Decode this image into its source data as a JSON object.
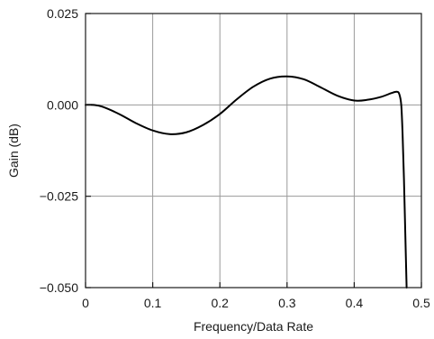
{
  "chart_data": {
    "type": "line",
    "title": "",
    "xlabel": "Frequency/Data Rate",
    "ylabel": "Gain (dB)",
    "xlim": [
      0,
      0.5
    ],
    "ylim": [
      -0.05,
      0.025
    ],
    "grid": true,
    "legend": "none",
    "x_ticks": [
      "0",
      "0.1",
      "0.2",
      "0.3",
      "0.4",
      "0.5"
    ],
    "x_tick_values": [
      0,
      0.1,
      0.2,
      0.3,
      0.4,
      0.5
    ],
    "y_ticks": [
      "0.025",
      "0.000",
      "−0.025",
      "−0.050"
    ],
    "y_tick_values": [
      0.025,
      0.0,
      -0.025,
      -0.05
    ],
    "series": [
      {
        "color": "#000000",
        "x": [
          0,
          0.012,
          0.025,
          0.05,
          0.075,
          0.1,
          0.125,
          0.15,
          0.175,
          0.2,
          0.225,
          0.25,
          0.275,
          0.3,
          0.325,
          0.35,
          0.375,
          0.4,
          0.42,
          0.44,
          0.455,
          0.463,
          0.467,
          0.47,
          0.472,
          0.474,
          0.476,
          0.478
        ],
        "y": [
          0.0,
          0.0,
          -0.0005,
          -0.0025,
          -0.005,
          -0.007,
          -0.008,
          -0.0075,
          -0.0055,
          -0.0025,
          0.0015,
          0.005,
          0.0072,
          0.0078,
          0.007,
          0.0048,
          0.0025,
          0.0012,
          0.0014,
          0.0022,
          0.0032,
          0.0036,
          0.003,
          0.0,
          -0.008,
          -0.02,
          -0.035,
          -0.05
        ]
      }
    ]
  }
}
